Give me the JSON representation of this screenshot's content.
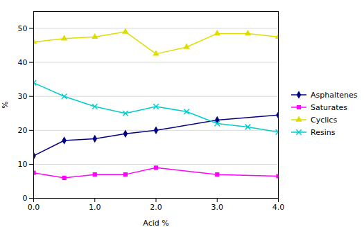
{
  "chart_data": {
    "type": "line",
    "xlabel": "Acid %",
    "ylabel": "%",
    "series": [
      {
        "name": "Asphaltenes",
        "color": "#000080",
        "marker": "diamond",
        "line_style": "solid",
        "x": [
          0,
          0.5,
          1.0,
          1.5,
          2.0,
          3.0,
          4.0
        ],
        "values": [
          12.5,
          17.0,
          17.5,
          19.0,
          20.0,
          23.0,
          24.5
        ]
      },
      {
        "name": "Saturates",
        "color": "#FF00FF",
        "marker": "square",
        "line_style": "solid",
        "x": [
          0,
          0.5,
          1.0,
          1.5,
          2.0,
          3.0,
          4.0
        ],
        "values": [
          7.5,
          6.0,
          7.0,
          7.0,
          9.0,
          7.0,
          6.5
        ]
      },
      {
        "name": "Cyclics",
        "color": "#DDDD00",
        "marker": "triangle",
        "line_style": "solid",
        "x": [
          0,
          0.5,
          1.0,
          1.5,
          2.0,
          2.5,
          3.0,
          3.5,
          4.0
        ],
        "values": [
          46.0,
          47.0,
          47.5,
          49.0,
          42.5,
          44.5,
          48.5,
          48.5,
          47.5
        ]
      },
      {
        "name": "Resins",
        "color": "#00CCCC",
        "marker": "x",
        "line_style": "solid",
        "x": [
          0,
          0.5,
          1.0,
          1.5,
          2.0,
          2.5,
          3.0,
          3.5,
          4.0
        ],
        "values": [
          34.0,
          30.0,
          27.0,
          25.0,
          27.0,
          25.5,
          22.0,
          21.0,
          19.5
        ]
      }
    ],
    "xlim": [
      0,
      4
    ],
    "xticks": [
      0,
      1,
      2,
      3,
      4
    ],
    "ylim": [
      0,
      55
    ],
    "yticks": [
      0,
      10,
      20,
      30,
      40,
      50
    ],
    "grid": "y",
    "legend": "right"
  }
}
